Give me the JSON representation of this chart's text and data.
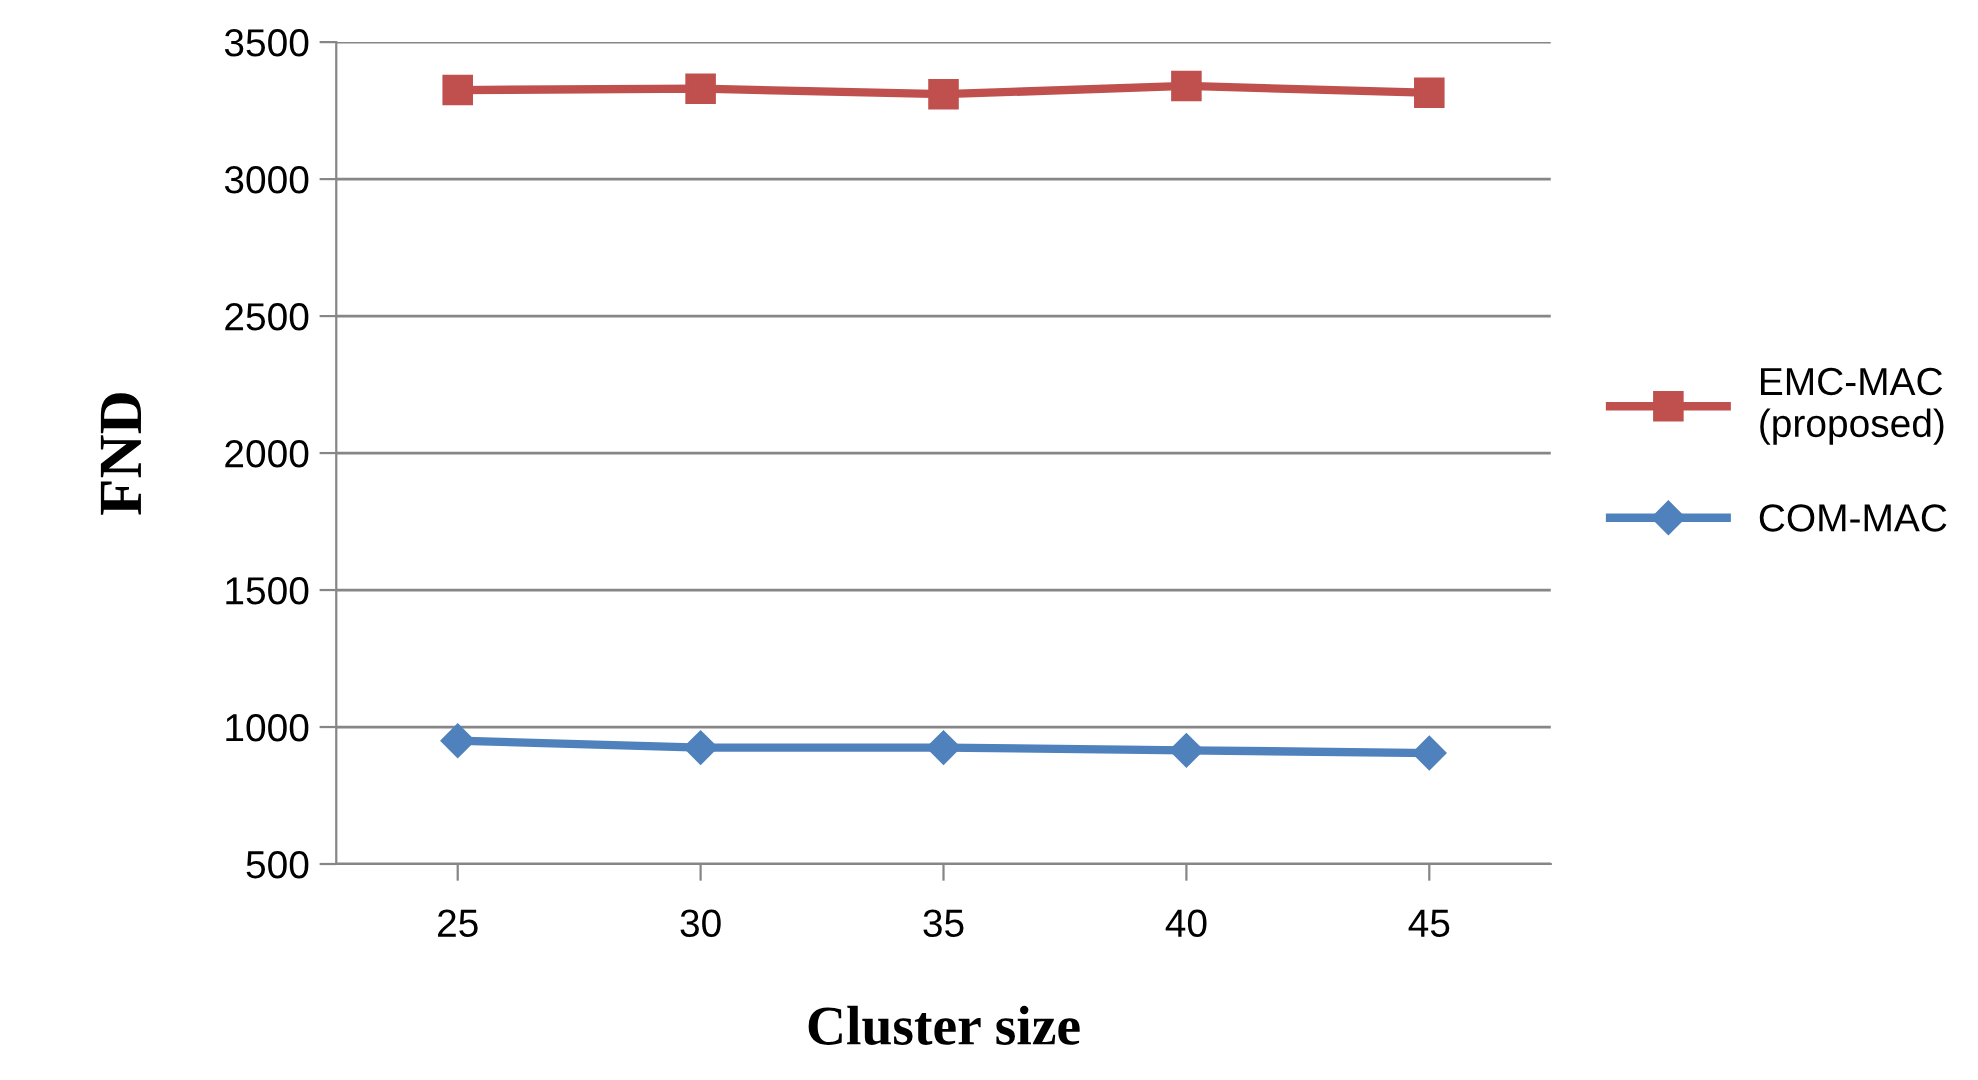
{
  "chart_data": {
    "type": "line",
    "xlabel": "Cluster size",
    "ylabel": "FND",
    "categories": [
      "25",
      "30",
      "35",
      "40",
      "45"
    ],
    "series": [
      {
        "name": "EMC-MAC\n(proposed)",
        "color": "#c0504d",
        "marker": "square",
        "values": [
          3325,
          3330,
          3310,
          3340,
          3315
        ]
      },
      {
        "name": "COM-MAC",
        "color": "#4f81bd",
        "marker": "diamond",
        "values": [
          950,
          925,
          925,
          915,
          905
        ]
      }
    ],
    "ylim": [
      500,
      3500
    ],
    "yticks": [
      500,
      1000,
      1500,
      2000,
      2500,
      3000,
      3500
    ],
    "grid": "y",
    "legend": "right",
    "line_style": "solid"
  }
}
